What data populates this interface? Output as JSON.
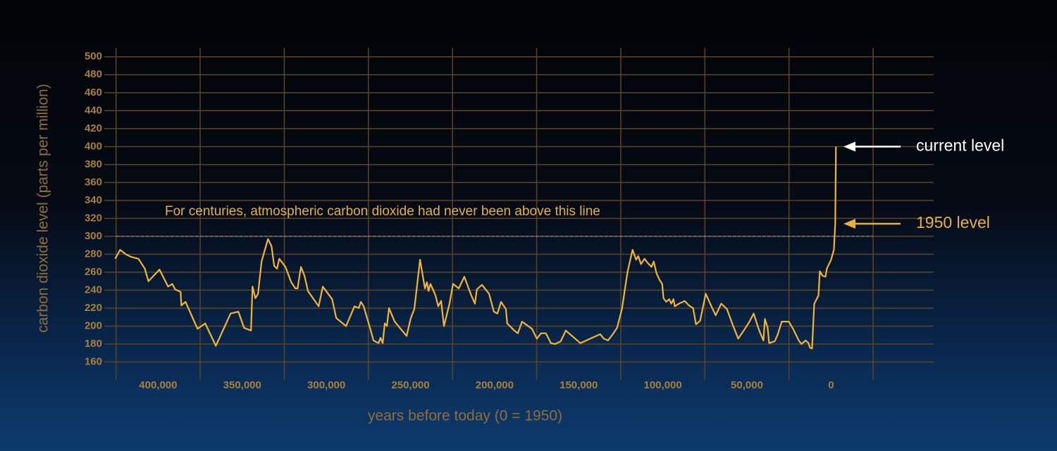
{
  "chart_data": {
    "type": "line",
    "y_label": "carbon dioxide level (parts per million)",
    "x_label": "years before today (0 = 1950)",
    "color": "#f0b43c",
    "x": [
      425500,
      422600,
      419200,
      415900,
      411700,
      407900,
      405800,
      399200,
      394100,
      391600,
      389900,
      386600,
      386200,
      383700,
      376600,
      372000,
      365700,
      356900,
      352300,
      348900,
      344800,
      343900,
      342200,
      340600,
      338500,
      334700,
      332600,
      331000,
      329300,
      328000,
      324300,
      320900,
      318400,
      317100,
      315100,
      313000,
      310900,
      304600,
      302100,
      296600,
      294100,
      288300,
      283300,
      280700,
      279500,
      277800,
      273600,
      272000,
      269000,
      267800,
      266500,
      265300,
      264000,
      262800,
      259400,
      252300,
      249800,
      247700,
      244300,
      241400,
      240200,
      239300,
      238100,
      235100,
      233500,
      231800,
      230100,
      226800,
      224700,
      221300,
      218000,
      213800,
      211700,
      210500,
      207500,
      203300,
      200400,
      198300,
      196200,
      193300,
      192500,
      188300,
      186200,
      183700,
      177800,
      174900,
      172400,
      169500,
      166500,
      164000,
      160700,
      157700,
      149000,
      137200,
      135100,
      132600,
      129700,
      127200,
      124300,
      120900,
      118000,
      115900,
      114600,
      113000,
      110900,
      108800,
      106700,
      105400,
      103800,
      102100,
      100400,
      99600,
      97900,
      96200,
      95000,
      93700,
      92900,
      90400,
      87000,
      84500,
      82000,
      80300,
      77800,
      74500,
      71100,
      68600,
      65300,
      61900,
      58600,
      55200,
      51900,
      48500,
      46000,
      42700,
      40200,
      39300,
      37700,
      36800,
      33500,
      31800,
      29300,
      25100,
      22600,
      19200,
      17600,
      15100,
      13400,
      12600,
      11300,
      10000,
      7500,
      6700,
      5000,
      3300,
      2500,
      0,
      -1700,
      -2500,
      -2900
    ],
    "values": [
      275,
      285,
      280,
      277,
      275,
      264,
      250,
      263,
      244,
      247,
      241,
      238,
      223,
      227,
      197,
      203,
      178,
      214,
      216,
      198,
      195,
      244,
      231,
      236,
      272,
      297,
      289,
      267,
      264,
      275,
      266,
      249,
      242,
      242,
      266,
      256,
      239,
      222,
      244,
      230,
      209,
      200,
      222,
      220,
      227,
      222,
      195,
      184,
      181,
      187,
      181,
      203,
      200,
      220,
      205,
      189,
      209,
      219,
      274,
      242,
      249,
      239,
      247,
      234,
      222,
      228,
      200,
      225,
      247,
      242,
      255,
      234,
      225,
      241,
      246,
      236,
      216,
      214,
      227,
      219,
      203,
      195,
      192,
      205,
      197,
      186,
      192,
      192,
      181,
      180,
      183,
      195,
      181,
      191,
      186,
      184,
      191,
      198,
      219,
      261,
      285,
      274,
      278,
      269,
      275,
      270,
      266,
      272,
      259,
      252,
      247,
      231,
      227,
      230,
      225,
      230,
      222,
      225,
      228,
      223,
      220,
      202,
      206,
      236,
      222,
      212,
      225,
      219,
      202,
      186,
      195,
      205,
      214,
      195,
      184,
      208,
      198,
      181,
      183,
      190,
      205,
      205,
      197,
      184,
      180,
      184,
      181,
      176,
      175,
      225,
      234,
      261,
      256,
      255,
      264,
      274,
      285,
      314,
      400
    ],
    "xlim": [
      432000,
      -61000
    ],
    "ylim": [
      140,
      510
    ],
    "xticks": [
      {
        "value": 400000,
        "label": "400,000"
      },
      {
        "value": 350000,
        "label": "350,000"
      },
      {
        "value": 300000,
        "label": "300,000"
      },
      {
        "value": 250000,
        "label": "250,000"
      },
      {
        "value": 200000,
        "label": "200,000"
      },
      {
        "value": 150000,
        "label": "150,000"
      },
      {
        "value": 100000,
        "label": "100,000"
      },
      {
        "value": 50000,
        "label": "50,000"
      },
      0
    ],
    "xgrid": [
      425000,
      375000,
      325000,
      275000,
      225000,
      175000,
      125000,
      75000,
      25000,
      -25000
    ],
    "yticks": [
      160,
      180,
      200,
      220,
      240,
      260,
      280,
      300,
      320,
      340,
      360,
      380,
      400,
      420,
      440,
      460,
      480,
      500
    ],
    "grid": true,
    "reference_line": {
      "y": 300,
      "xlim": [
        425000,
        -25000
      ],
      "label": "For centuries, atmospheric carbon dioxide had never been above this line"
    },
    "annotations": [
      {
        "text": "current level",
        "y": 400,
        "color": "#ffffff"
      },
      {
        "text": "1950 level",
        "y": 314,
        "color": "#e8b040"
      }
    ]
  }
}
